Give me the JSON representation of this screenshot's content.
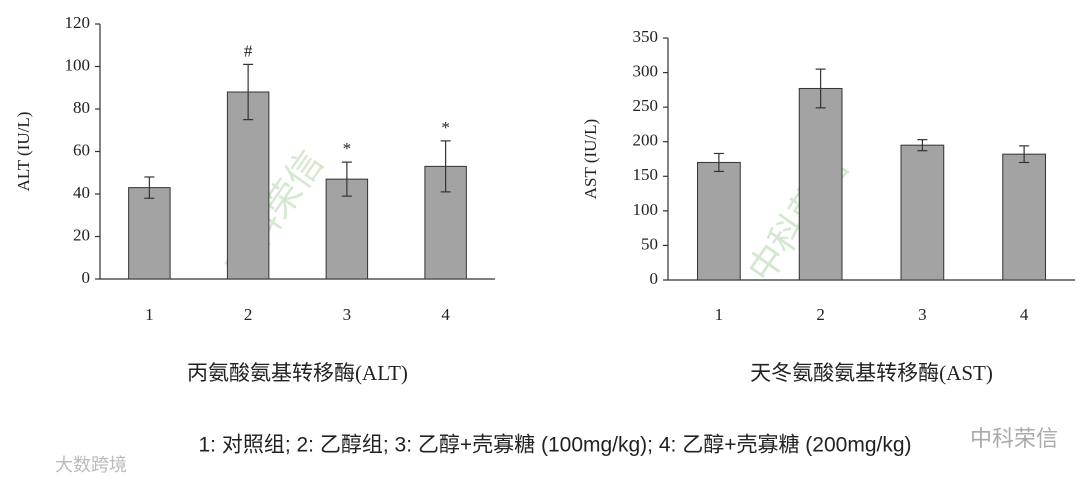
{
  "chart_data": [
    {
      "type": "bar",
      "title": "丙氨酸氨基转移酶(ALT)",
      "y_label": "ALT (IU/L)",
      "categories": [
        "1",
        "2",
        "3",
        "4"
      ],
      "values": [
        43,
        88,
        47,
        53
      ],
      "errors": [
        5,
        13,
        8,
        12
      ],
      "annotations": [
        {
          "category": "2",
          "text": "#"
        },
        {
          "category": "3",
          "text": "*"
        },
        {
          "category": "4",
          "text": "*"
        }
      ],
      "color": "#a3a3a3",
      "ylim": [
        0,
        120
      ],
      "yticks": [
        0,
        20,
        40,
        60,
        80,
        100,
        120
      ],
      "grid": false
    },
    {
      "type": "bar",
      "title": "天冬氨酸氨基转移酶(AST)",
      "y_label": "AST (IU/L)",
      "categories": [
        "1",
        "2",
        "3",
        "4"
      ],
      "values": [
        170,
        277,
        195,
        182
      ],
      "errors": [
        13,
        28,
        8,
        12
      ],
      "color": "#a3a3a3",
      "ylim": [
        0,
        350
      ],
      "yticks": [
        0,
        50,
        100,
        150,
        200,
        250,
        300,
        350
      ],
      "grid": false
    }
  ],
  "caption": "1: 对照组; 2: 乙醇组; 3: 乙醇+壳寡糖 (100mg/kg); 4: 乙醇+壳寡糖 (200mg/kg)",
  "watermarks": {
    "center": "中科荣信",
    "bottom_left": "大数跨境",
    "bottom_right": "中科荣信"
  }
}
